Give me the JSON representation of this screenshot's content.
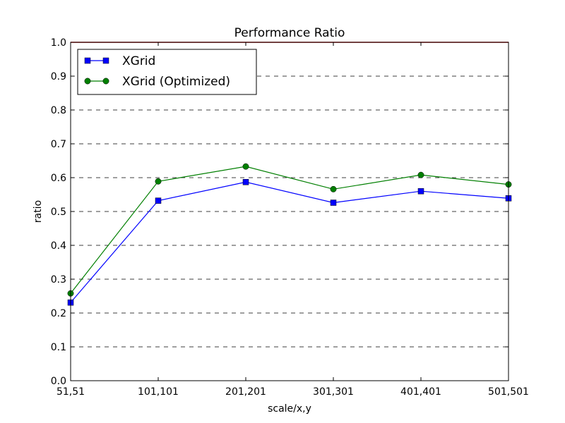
{
  "chart_data": {
    "type": "line",
    "title": "Performance Ratio",
    "xlabel": "scale/x,y",
    "ylabel": "ratio",
    "categories": [
      "51,51",
      "101,101",
      "201,201",
      "301,301",
      "401,401",
      "501,501"
    ],
    "ylim": [
      0.0,
      1.0
    ],
    "yticks": [
      "0.0",
      "0.1",
      "0.2",
      "0.3",
      "0.4",
      "0.5",
      "0.6",
      "0.7",
      "0.8",
      "0.9",
      "1.0"
    ],
    "grid": "horizontal dashed",
    "reference_line": {
      "y": 1.0,
      "color": "#cc0000"
    },
    "legend_position": "top-left",
    "series": [
      {
        "name": "XGrid",
        "marker": "square",
        "color": "#0000ff",
        "values": [
          0.231,
          0.532,
          0.587,
          0.526,
          0.56,
          0.539
        ]
      },
      {
        "name": "XGrid (Optimized)",
        "marker": "circle",
        "color": "#007f00",
        "values": [
          0.258,
          0.589,
          0.633,
          0.566,
          0.608,
          0.58
        ]
      }
    ]
  }
}
